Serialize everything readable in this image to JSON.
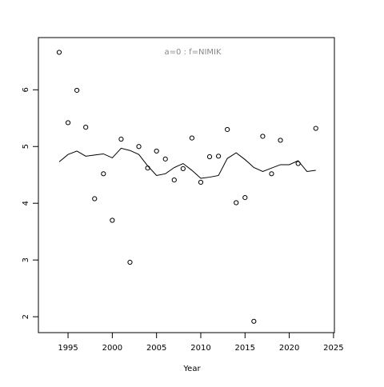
{
  "chart_data": {
    "type": "line",
    "title": "a=0  :  f=NIMIK",
    "x_label": "Year",
    "x": [
      1994,
      1995,
      1996,
      1997,
      1998,
      1999,
      2000,
      2001,
      2002,
      2003,
      2004,
      2005,
      2006,
      2007,
      2008,
      2009,
      2010,
      2011,
      2012,
      2013,
      2014,
      2015,
      2016,
      2017,
      2018,
      2019,
      2020,
      2021,
      2022,
      2023
    ],
    "series": [
      {
        "style": "points",
        "color": "#000000",
        "values": [
          6.66,
          5.42,
          5.99,
          5.34,
          4.08,
          4.52,
          3.7,
          5.13,
          2.96,
          5.0,
          4.62,
          4.92,
          4.78,
          4.41,
          4.61,
          5.15,
          4.37,
          4.82,
          4.83,
          5.3,
          4.01,
          4.1,
          1.92,
          5.18,
          4.52,
          5.11,
          null,
          4.7,
          null,
          5.32
        ]
      },
      {
        "style": "line",
        "color": "#000000",
        "values": [
          4.73,
          4.86,
          4.92,
          4.83,
          4.85,
          4.87,
          4.8,
          4.97,
          4.93,
          4.86,
          4.66,
          4.49,
          4.52,
          4.63,
          4.7,
          4.58,
          4.44,
          4.46,
          4.49,
          4.79,
          4.89,
          4.77,
          4.63,
          4.56,
          4.62,
          4.68,
          4.68,
          4.75,
          4.56,
          4.58
        ]
      }
    ],
    "xlim": [
      1991.65,
      2025.1
    ],
    "xticks": [
      1995,
      2000,
      2005,
      2010,
      2015,
      2020,
      2025
    ],
    "ylim": [
      1.72,
      6.92
    ],
    "yticks": [
      2,
      3,
      4,
      5,
      6
    ]
  }
}
